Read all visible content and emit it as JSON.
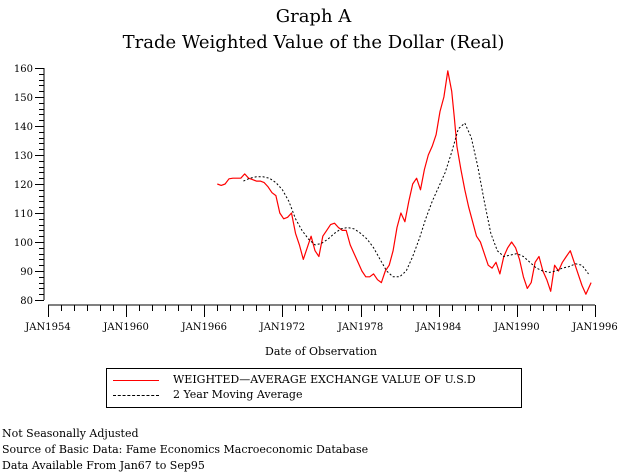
{
  "chart_data": {
    "type": "line",
    "title": "Graph A",
    "subtitle": "Trade Weighted Value of the Dollar (Real)",
    "xlabel": "Date of Observation",
    "ylabel": "",
    "xlim": [
      1954,
      1996
    ],
    "ylim": [
      80,
      160
    ],
    "grid": false,
    "legend_position": "bottom-center",
    "y_ticks": [
      80,
      90,
      100,
      110,
      120,
      130,
      140,
      150,
      160
    ],
    "x_ticks": [
      {
        "value": 1954,
        "label": "JAN1954"
      },
      {
        "value": 1960,
        "label": "JAN1960"
      },
      {
        "value": 1966,
        "label": "JAN1966"
      },
      {
        "value": 1972,
        "label": "JAN1972"
      },
      {
        "value": 1978,
        "label": "JAN1978"
      },
      {
        "value": 1984,
        "label": "JAN1984"
      },
      {
        "value": 1990,
        "label": "JAN1990"
      },
      {
        "value": 1996,
        "label": "JAN1996"
      }
    ],
    "series": [
      {
        "name": "WEIGHTED—AVERAGE EXCHANGE VALUE OF U.S.D",
        "color": "#ff0000",
        "style": "solid",
        "x": [
          1967.0,
          1967.3,
          1967.6,
          1967.9,
          1968.2,
          1968.5,
          1968.8,
          1969.1,
          1969.4,
          1969.7,
          1970.0,
          1970.3,
          1970.6,
          1970.9,
          1971.2,
          1971.5,
          1971.8,
          1972.1,
          1972.4,
          1972.7,
          1973.0,
          1973.3,
          1973.6,
          1973.9,
          1974.2,
          1974.5,
          1974.8,
          1975.1,
          1975.4,
          1975.7,
          1976.0,
          1976.3,
          1976.6,
          1976.9,
          1977.2,
          1977.5,
          1977.8,
          1978.1,
          1978.4,
          1978.7,
          1979.0,
          1979.3,
          1979.6,
          1979.9,
          1980.2,
          1980.5,
          1980.8,
          1981.1,
          1981.4,
          1981.7,
          1982.0,
          1982.3,
          1982.6,
          1982.9,
          1983.2,
          1983.5,
          1983.8,
          1984.1,
          1984.4,
          1984.7,
          1985.0,
          1985.2,
          1985.4,
          1985.7,
          1986.0,
          1986.3,
          1986.6,
          1986.9,
          1987.2,
          1987.5,
          1987.8,
          1988.1,
          1988.4,
          1988.7,
          1989.0,
          1989.3,
          1989.6,
          1989.9,
          1990.2,
          1990.5,
          1990.8,
          1991.1,
          1991.4,
          1991.7,
          1992.0,
          1992.3,
          1992.6,
          1992.9,
          1993.2,
          1993.5,
          1993.8,
          1994.1,
          1994.4,
          1994.7,
          1995.0,
          1995.3,
          1995.7
        ],
        "y": [
          120,
          119.5,
          120,
          121.8,
          122,
          122,
          122,
          123.5,
          122,
          121.5,
          121,
          121,
          120.5,
          119,
          117,
          116,
          110,
          108,
          108.5,
          110,
          103,
          99,
          94,
          98,
          102,
          97,
          95,
          102,
          104,
          106,
          106.5,
          105,
          104,
          104,
          99,
          96,
          93,
          90,
          88,
          88,
          89,
          87,
          86,
          90,
          92,
          97,
          105,
          110,
          107,
          114,
          120,
          122,
          118,
          125,
          130,
          133,
          137,
          145,
          150,
          159,
          152,
          143,
          133,
          125,
          118,
          112,
          107,
          102,
          100,
          96,
          92,
          91,
          93,
          89,
          95,
          98,
          100,
          98,
          94,
          88,
          84,
          86,
          93,
          95,
          90,
          87,
          83,
          92,
          90,
          93,
          95,
          97,
          93,
          89,
          85,
          82,
          86
        ]
      },
      {
        "name": "2 Year Moving Average",
        "color": "#000000",
        "style": "dashed",
        "x": [
          1969.0,
          1969.5,
          1970.0,
          1970.5,
          1971.0,
          1971.5,
          1972.0,
          1972.5,
          1973.0,
          1973.5,
          1974.0,
          1974.5,
          1975.0,
          1975.5,
          1976.0,
          1976.5,
          1977.0,
          1977.5,
          1978.0,
          1978.5,
          1979.0,
          1979.5,
          1980.0,
          1980.5,
          1981.0,
          1981.5,
          1982.0,
          1982.5,
          1983.0,
          1983.5,
          1984.0,
          1984.5,
          1985.0,
          1985.5,
          1986.0,
          1986.5,
          1987.0,
          1987.5,
          1988.0,
          1988.5,
          1989.0,
          1989.5,
          1990.0,
          1990.5,
          1991.0,
          1991.5,
          1992.0,
          1992.5,
          1993.0,
          1993.5,
          1994.0,
          1994.5,
          1995.0,
          1995.5
        ],
        "y": [
          121,
          122,
          122.5,
          122.5,
          122,
          120.5,
          118,
          114,
          108,
          104,
          101,
          99,
          99.5,
          101,
          103,
          104.5,
          105,
          104.5,
          103,
          101,
          98,
          94,
          90,
          88,
          88,
          90,
          95,
          101,
          108,
          114,
          119,
          124,
          131,
          139,
          141,
          136,
          126,
          114,
          103,
          97,
          95,
          95.5,
          96,
          95,
          93,
          91,
          90,
          89.5,
          90,
          91,
          91.5,
          92.5,
          92,
          89
        ]
      }
    ]
  },
  "header": {
    "title": "Graph A",
    "subtitle": "Trade Weighted Value of the Dollar (Real)"
  },
  "legend": {
    "items": [
      {
        "label": "WEIGHTED—AVERAGE EXCHANGE VALUE OF U.S.D",
        "color": "#ff0000",
        "style": "solid"
      },
      {
        "label": "2 Year Moving Average",
        "color": "#000000",
        "style": "dashed"
      }
    ]
  },
  "footnotes": [
    "Not Seasonally Adjusted",
    "Source of Basic Data: Fame Economics Macroeconomic Database",
    "Data Available From Jan67 to Sep95"
  ]
}
